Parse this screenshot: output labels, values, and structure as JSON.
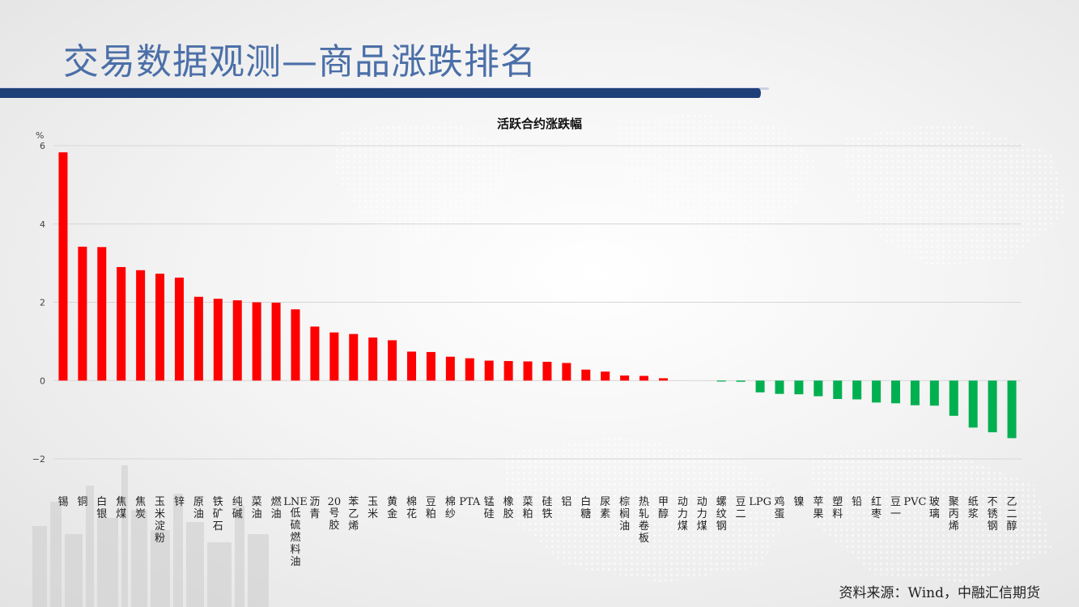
{
  "slide": {
    "title": "交易数据观测—商品涨跌排名",
    "source": "资料来源：Wind，中融汇信期货"
  },
  "colors": {
    "up": "#ff0000",
    "down": "#00b050",
    "title": "#4b6fa8",
    "stripe": "#1f3f79"
  },
  "chart_data": {
    "type": "bar",
    "title": "活跃合约涨跌幅",
    "ylabel": "%",
    "ylim": [
      -2,
      6
    ],
    "yticks": [
      -2,
      0,
      2,
      4,
      6
    ],
    "grid": true,
    "categories": [
      "锡",
      "铜",
      "白银",
      "焦煤",
      "焦炭",
      "玉米淀粉",
      "锌",
      "原油",
      "铁矿石",
      "纯碱",
      "菜油",
      "燃油",
      "LNE低硫燃料油",
      "沥青",
      "20号胶",
      "苯乙烯",
      "玉米",
      "黄金",
      "棉花",
      "豆粕",
      "棉纱",
      "PTA",
      "锰硅",
      "橡胶",
      "菜粕",
      "硅铁",
      "铝",
      "白糖",
      "尿素",
      "棕榈油",
      "热轧卷板",
      "甲醇",
      "动力煤",
      "动力煤",
      "螺纹钢",
      "豆二",
      "LPG",
      "鸡蛋",
      "镍",
      "苹果",
      "塑料",
      "铅",
      "红枣",
      "豆一",
      "PVC",
      "玻璃",
      "聚丙烯",
      "纸浆",
      "不锈钢",
      "乙二醇"
    ],
    "values": [
      5.83,
      3.42,
      3.41,
      2.9,
      2.82,
      2.73,
      2.63,
      2.14,
      2.09,
      2.05,
      2.0,
      1.99,
      1.82,
      1.38,
      1.23,
      1.19,
      1.1,
      1.03,
      0.74,
      0.73,
      0.61,
      0.57,
      0.51,
      0.5,
      0.49,
      0.48,
      0.45,
      0.28,
      0.23,
      0.13,
      0.12,
      0.06,
      0.0,
      0.0,
      -0.02,
      -0.03,
      -0.3,
      -0.34,
      -0.35,
      -0.4,
      -0.47,
      -0.48,
      -0.56,
      -0.58,
      -0.63,
      -0.64,
      -0.9,
      -1.2,
      -1.32,
      -1.47
    ]
  }
}
